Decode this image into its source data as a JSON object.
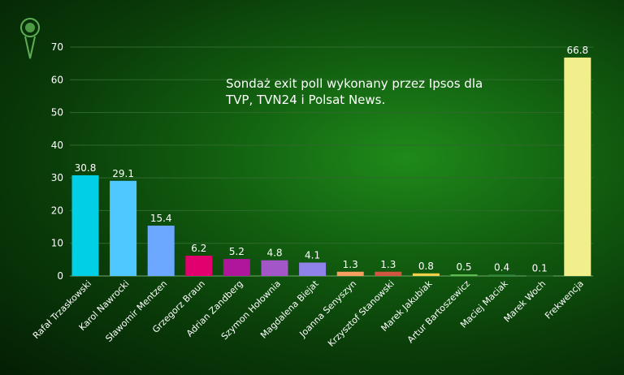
{
  "chart_data": {
    "type": "bar",
    "title": [
      "Sondaż exit poll wykonany przez Ipsos dla",
      "TVP, TVN24 i Polsat News."
    ],
    "xlabel": "",
    "ylabel": "",
    "ylim": [
      0,
      70
    ],
    "yticks": [
      0,
      10,
      20,
      30,
      40,
      50,
      60,
      70
    ],
    "grid": true,
    "categories": [
      "Rafał Trzaskowski",
      "Karol Nawrocki",
      "Sławomir Mentzen",
      "Grzegorz Braun",
      "Adrian Zandberg",
      "Szymon Hołownia",
      "Magdalena Biejat",
      "Joanna Senyszyn",
      "Krzysztof Stanowski",
      "Marek Jakubiak",
      "Artur Bartoszewicz",
      "Maciej Maciak",
      "Marek Woch",
      "Frekwencja"
    ],
    "values": [
      30.8,
      29.1,
      15.4,
      6.2,
      5.2,
      4.8,
      4.1,
      1.3,
      1.3,
      0.8,
      0.5,
      0.4,
      0.1,
      66.8
    ],
    "value_labels": [
      "30.8",
      "29.1",
      "15.4",
      "6.2",
      "5.2",
      "4.8",
      "4.1",
      "1.3",
      "1.3",
      "0.8",
      "0.5",
      "0.4",
      "0.1",
      "66.8"
    ],
    "colors": [
      "#00cfe6",
      "#4ec8ff",
      "#6ca8ff",
      "#e0006e",
      "#b0169c",
      "#a256c8",
      "#8f82e8",
      "#f5a05e",
      "#d2553f",
      "#f2d04a",
      "#5cbb4e",
      "#2e8a3c",
      "#2a6e2a",
      "#f0ef8c"
    ]
  }
}
